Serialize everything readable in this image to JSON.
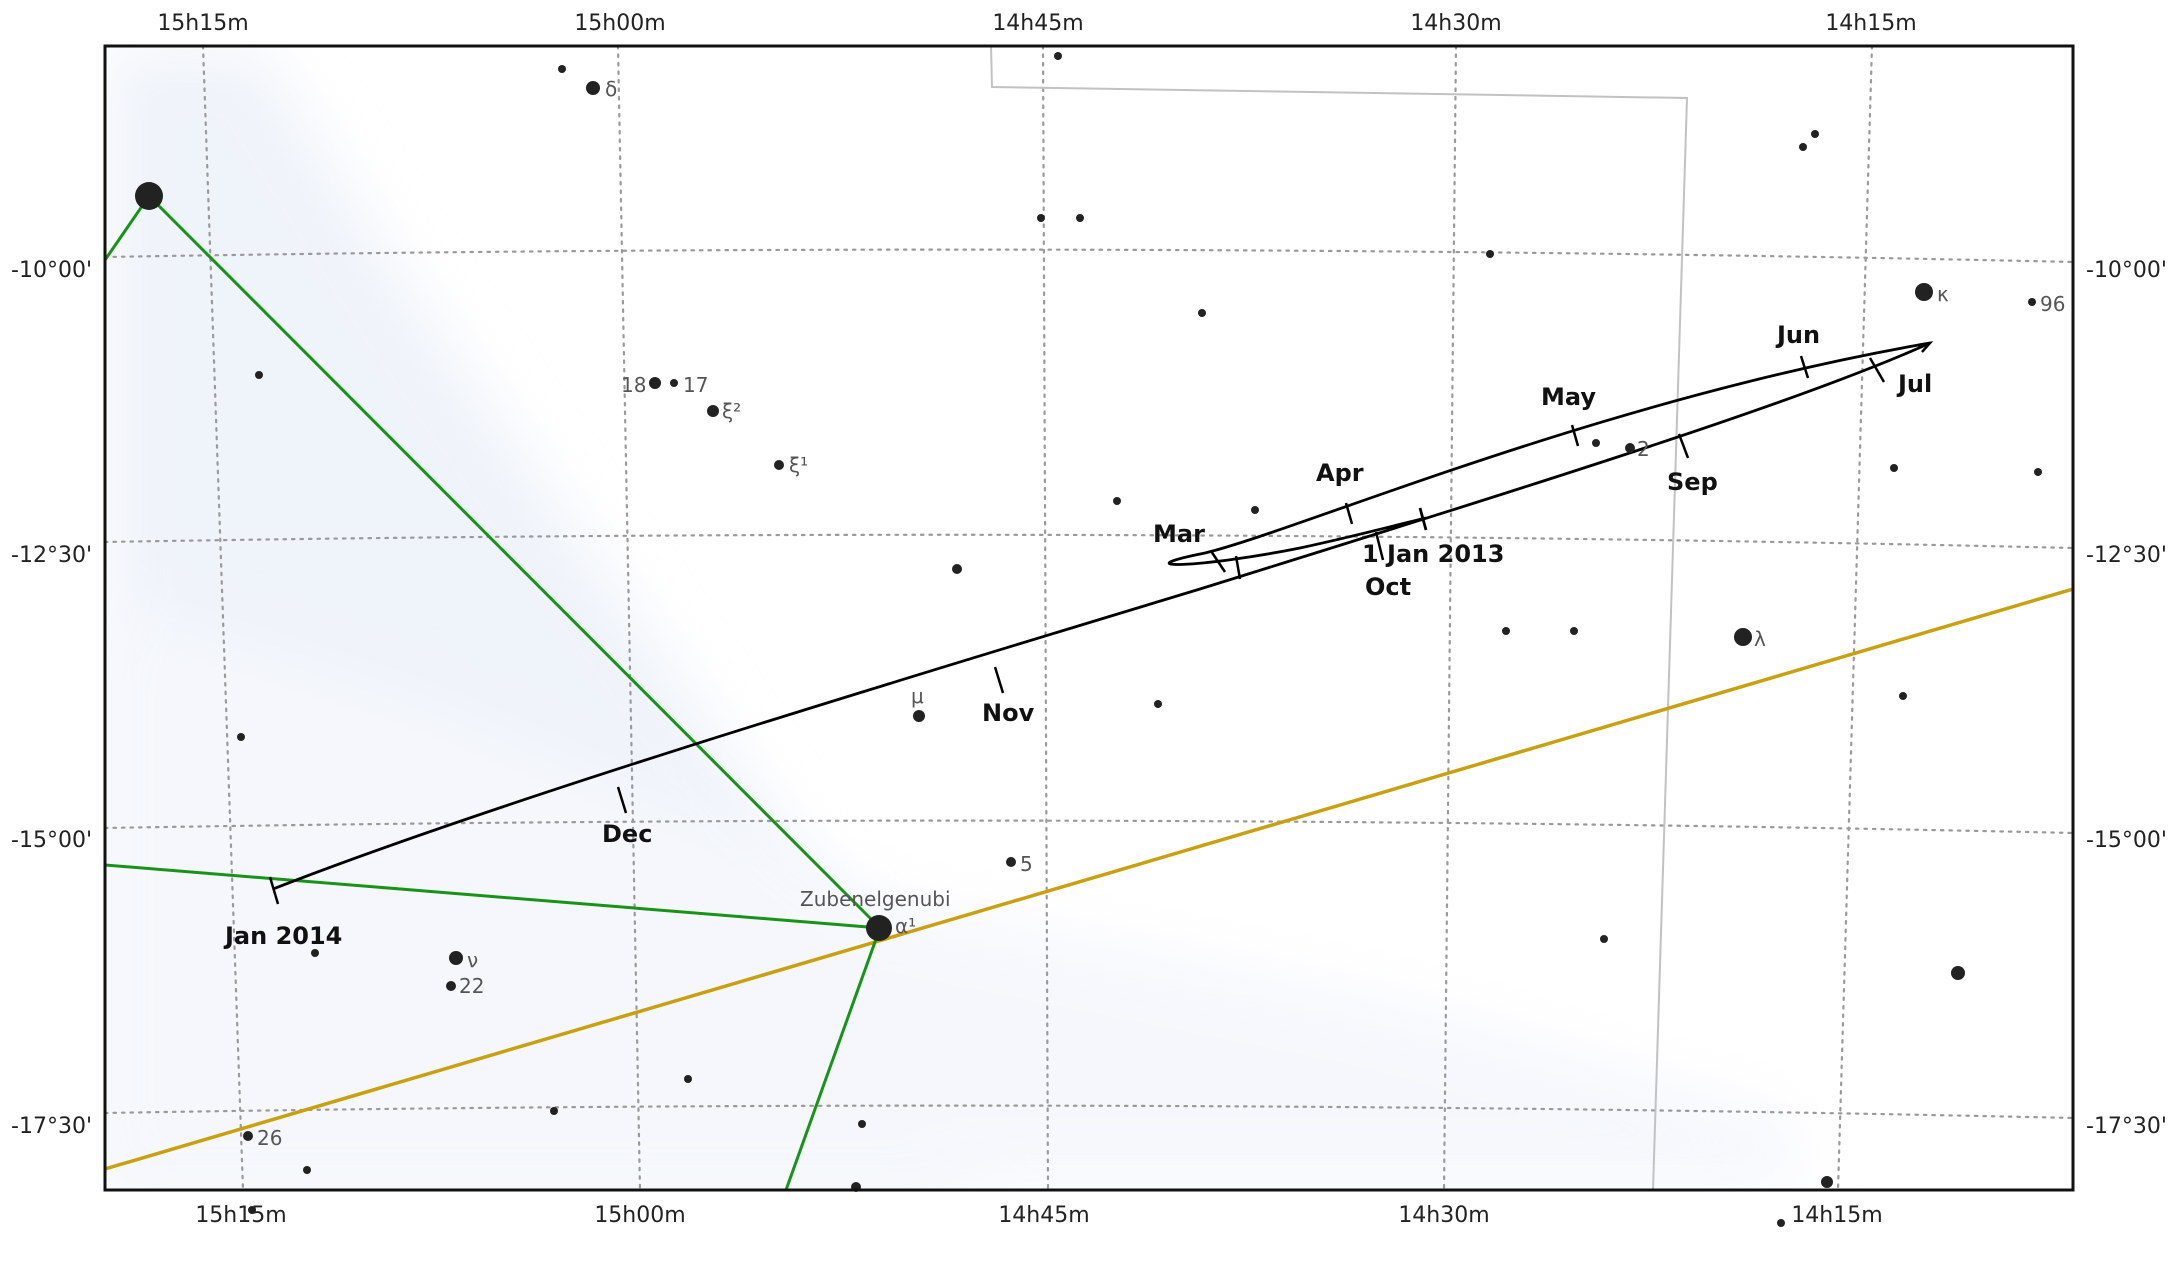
{
  "map": {
    "ra_labels": [
      "15h15m",
      "15h00m",
      "14h45m",
      "14h30m",
      "14h15m"
    ],
    "dec_labels": [
      "-10°00'",
      "-12°30'",
      "-15°00'",
      "-17°30'"
    ],
    "colors": {
      "background": "#ffffff",
      "frame": "#111111",
      "grid": "#9a9a9a",
      "milky_way": "#dfe8f6",
      "constellation_lines": "#179417",
      "ecliptic": "#c8a010",
      "boundary": "#c0c0c0",
      "path": "#000000",
      "stars": "#222222",
      "star_labels": "#555555"
    },
    "path_labels": [
      "1 Jan 2013",
      "Mar",
      "Apr",
      "May",
      "Jun",
      "Jul",
      "Sep",
      "Oct",
      "Nov",
      "Dec",
      "Jan 2014"
    ],
    "star_labels": [
      "δ",
      "κ",
      "96",
      "18",
      "17",
      "ξ²",
      "ξ¹",
      "2",
      "λ",
      "μ",
      "5",
      "Zubenelgenubi",
      "α¹",
      "ν",
      "22",
      "26"
    ]
  }
}
